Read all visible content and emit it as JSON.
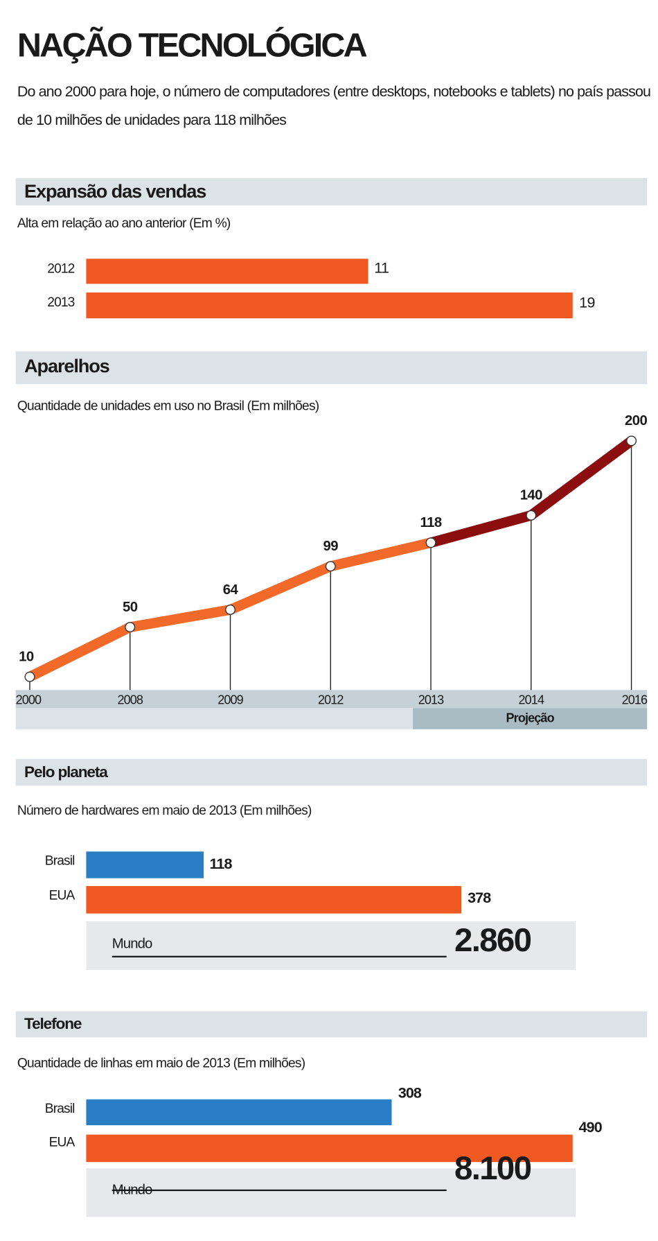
{
  "title": "NAÇÃO TECNOLÓGICA",
  "lede": "Do ano 2000 para hoje, o número de computadores (entre desktops, notebooks e tablets) no país passou de 10 milhões de unidades para 118 milhões",
  "colors": {
    "orange": "#f05a22",
    "dark_red": "#8b0d0d",
    "line_orange": "#f26a2a",
    "blue": "#2a7fc4",
    "header_bg": "#dce3e7",
    "axis_band": "#c5d1d6",
    "projection_band": "#a9bcc4"
  },
  "chart_data": [
    {
      "type": "bar",
      "title": "Expansão das vendas",
      "subtitle": "Alta em relação ao ano anterior (Em %)",
      "categories": [
        "2012",
        "2013"
      ],
      "values": [
        11,
        19
      ],
      "value_labels": [
        "11",
        "19"
      ]
    },
    {
      "type": "line",
      "title": "Aparelhos",
      "subtitle": "Quantidade de unidades em uso no Brasil (Em milhões)",
      "categories": [
        "2000",
        "2008",
        "2009",
        "2012",
        "2013",
        "2014",
        "2016"
      ],
      "values": [
        10,
        50,
        64,
        99,
        118,
        140,
        200
      ],
      "value_labels": [
        "10",
        "50",
        "64",
        "99",
        "118",
        "140",
        "200"
      ],
      "projection_label": "Projeção",
      "projection_from": "2013"
    },
    {
      "type": "bar",
      "title": "Pelo planeta",
      "subtitle": "Número de hardwares em maio de 2013 (Em milhões)",
      "categories": [
        "Brasil",
        "EUA"
      ],
      "values": [
        118,
        378
      ],
      "value_labels": [
        "118",
        "378"
      ],
      "total_label": "Mundo",
      "total_value": "2.860"
    },
    {
      "type": "bar",
      "title": "Telefone",
      "subtitle": "Quantidade de linhas em maio de 2013 (Em milhões)",
      "categories": [
        "Brasil",
        "EUA"
      ],
      "values": [
        308,
        490
      ],
      "value_labels": [
        "308",
        "490"
      ],
      "total_label": "Mundo",
      "total_value": "8.100"
    }
  ]
}
